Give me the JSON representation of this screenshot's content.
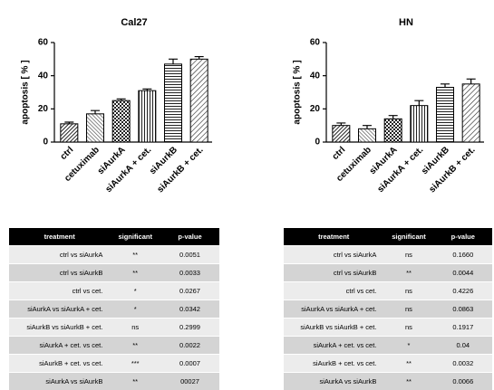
{
  "chart_data": [
    {
      "type": "bar",
      "title": "Cal27",
      "y_label": "apoptosis [ % ]",
      "categories": [
        "ctrl",
        "cetuximab",
        "siAurkA",
        "siAurkA  + cet.",
        "siAurkB",
        "siAurkB + cet."
      ],
      "values": [
        11,
        17,
        25,
        31,
        47,
        50
      ],
      "errors": [
        1,
        2,
        1,
        1,
        3,
        1.5
      ],
      "ylim": [
        0,
        60
      ],
      "yticks": [
        0,
        20,
        40,
        60
      ]
    },
    {
      "type": "bar",
      "title": "HN",
      "y_label": "apoptosis [ % ]",
      "categories": [
        "ctrl",
        "cetuximab",
        "siAurkA",
        "siAurkA  + cet.",
        "siAurkB",
        "siAurkB + cet."
      ],
      "values": [
        10,
        8,
        14,
        22,
        33,
        35
      ],
      "errors": [
        1.5,
        2,
        2,
        3,
        2,
        3
      ],
      "ylim": [
        0,
        60
      ],
      "yticks": [
        0,
        20,
        40,
        60
      ]
    }
  ],
  "tables": [
    {
      "header": [
        "treatment",
        "significant",
        "p-value"
      ],
      "rows": [
        [
          "ctrl  vs siAurkA",
          "**",
          "0.0051"
        ],
        [
          "ctrl  vs siAurkB",
          "**",
          "0.0033"
        ],
        [
          "ctrl  vs cet.",
          "*",
          "0.0267"
        ],
        [
          "siAurkA  vs siAurkA  + cet.",
          "*",
          "0.0342"
        ],
        [
          "siAurkB  vs siAurkB  + cet.",
          "ns",
          "0.2999"
        ],
        [
          "siAurkA  + cet. vs cet.",
          "**",
          "0.0022"
        ],
        [
          "siAurkB + cet. vs cet.",
          "***",
          "0.0007"
        ],
        [
          "siAurkA  vs siAurkB",
          "**",
          "00027"
        ]
      ]
    },
    {
      "header": [
        "treatment",
        "significant",
        "p-value"
      ],
      "rows": [
        [
          "ctrl  vs siAurkA",
          "ns",
          "0.1660"
        ],
        [
          "ctrl  vs siAurkB",
          "**",
          "0.0044"
        ],
        [
          "ctrl  vs cet.",
          "ns",
          "0.4226"
        ],
        [
          "siAurkA  vs siAurkA  + cet.",
          "ns",
          "0.0863"
        ],
        [
          "siAurkB  vs siAurkB  + cet.",
          "ns",
          "0.1917"
        ],
        [
          "siAurkA  + cet. vs cet.",
          "*",
          "0.04"
        ],
        [
          "siAurkB + cet. vs cet.",
          "**",
          "0.0032"
        ],
        [
          "siAurkA  vs siAurkB",
          "**",
          "0.0066"
        ]
      ]
    }
  ]
}
